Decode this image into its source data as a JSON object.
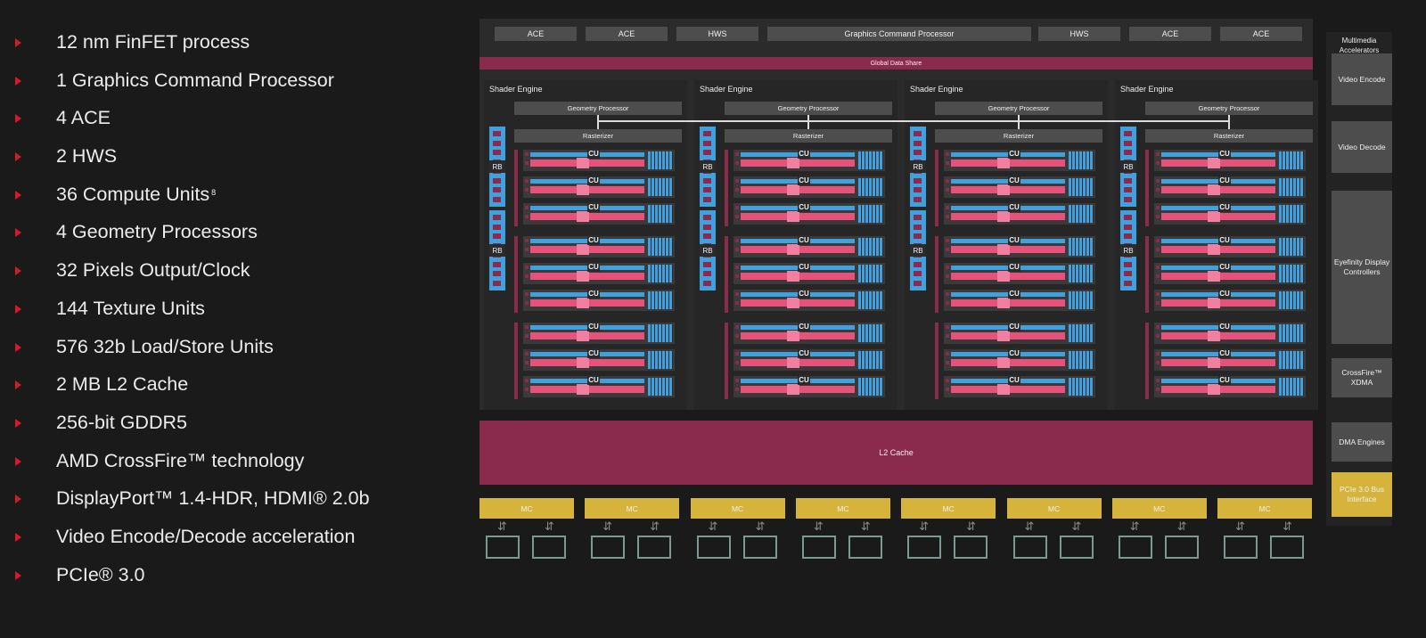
{
  "features": [
    {
      "text": "12 nm FinFET process"
    },
    {
      "text": "1 Graphics Command Processor"
    },
    {
      "text": "4 ACE"
    },
    {
      "text": "2 HWS"
    },
    {
      "text": "36 Compute Units",
      "sup": "8"
    },
    {
      "text": "4 Geometry Processors"
    },
    {
      "text": "32 Pixels Output/Clock"
    },
    {
      "text": "144 Texture Units"
    },
    {
      "text": "576 32b Load/Store Units"
    },
    {
      "text": "2 MB L2 Cache"
    },
    {
      "text": "256-bit GDDR5"
    },
    {
      "text": "AMD CrossFire™ technology"
    },
    {
      "text": "DisplayPort™ 1.4-HDR, HDMI® 2.0b"
    },
    {
      "text": "Video Encode/Decode acceleration"
    },
    {
      "text": "PCIe® 3.0"
    }
  ],
  "top_bar": [
    "ACE",
    "ACE",
    "HWS",
    "Graphics Command Processor",
    "HWS",
    "ACE",
    "ACE"
  ],
  "global_data_share": "Global Data Share",
  "shader_engine": {
    "label": "Shader Engine",
    "geometry_processor": "Geometry Processor",
    "rasterizer": "Rasterizer",
    "rb_label": "RB",
    "cu_label": "CU"
  },
  "multimedia": {
    "title": "Multimedia Accelerators",
    "video_encode": "Video Encode",
    "video_decode": "Video Decode",
    "eyefinity": "Eyefinity Display Controllers",
    "crossfire": "CrossFire™ XDMA",
    "dma": "DMA Engines",
    "pcie": "PCIe 3.0 Bus Interface"
  },
  "l2_cache": "L2 Cache",
  "mc_label": "MC",
  "colors": {
    "background": "#1a1a1a",
    "accent_red": "#d9182a",
    "maroon": "#8a2a4c",
    "blue": "#3fa2df",
    "pink": "#e6527a",
    "gold": "#d6b33a",
    "gray_box": "#4d4d4d"
  }
}
